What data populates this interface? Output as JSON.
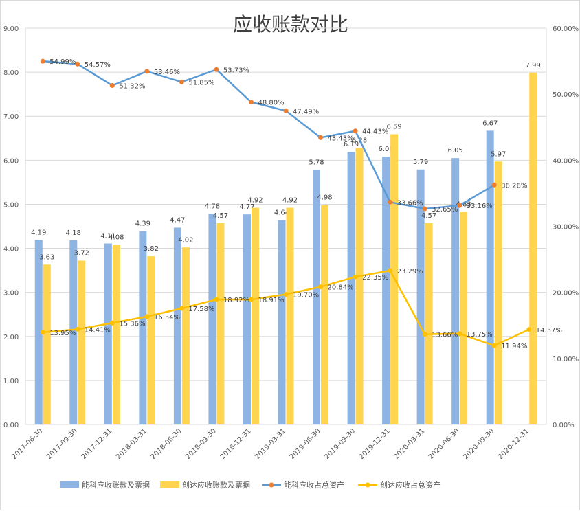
{
  "chart_data": {
    "type": "bar",
    "title": "应收账款对比",
    "categories": [
      "2017-06-30",
      "2017-09-30",
      "2017-12-31",
      "2018-03-31",
      "2018-06-30",
      "2018-09-30",
      "2018-12-31",
      "2019-03-31",
      "2019-06-30",
      "2019-09-30",
      "2019-12-31",
      "2020-03-31",
      "2020-06-30",
      "2020-09-30",
      "2020-12-31"
    ],
    "series": [
      {
        "name": "能科应收账款及票据",
        "kind": "bar",
        "axis": "left",
        "color": "#8db4e2",
        "values": [
          4.19,
          4.18,
          4.11,
          4.39,
          4.47,
          4.78,
          4.77,
          4.64,
          5.78,
          6.19,
          6.08,
          5.79,
          6.05,
          6.67,
          null
        ],
        "labels": [
          "4.19",
          "4.18",
          "4.11",
          "4.39",
          "4.47",
          "4.78",
          "4.77",
          "4.64",
          "5.78",
          "6.19",
          "6.08",
          "5.79",
          "6.05",
          "6.67",
          ""
        ]
      },
      {
        "name": "创达应收账款及票据",
        "kind": "bar",
        "axis": "left",
        "color": "#ffd54f",
        "values": [
          3.63,
          3.72,
          4.08,
          3.82,
          4.02,
          4.57,
          4.92,
          4.92,
          4.98,
          6.28,
          6.59,
          4.57,
          4.83,
          5.97,
          7.99
        ],
        "labels": [
          "3.63",
          "3.72",
          "4.08",
          "3.82",
          "4.02",
          "4.57",
          "4.92",
          "4.92",
          "4.98",
          "6.28",
          "6.59",
          "4.57",
          "4.83",
          "5.97",
          "7.99"
        ]
      },
      {
        "name": "能科应收占总资产",
        "kind": "line",
        "axis": "right",
        "color": "#5b9bd5",
        "marker": "#ed7d31",
        "values": [
          54.99,
          54.57,
          51.32,
          53.46,
          51.85,
          53.73,
          48.8,
          47.49,
          43.43,
          44.43,
          33.66,
          32.65,
          33.16,
          36.26,
          null
        ],
        "labels": [
          "54.99%",
          "54.57%",
          "51.32%",
          "53.46%",
          "51.85%",
          "53.73%",
          "48.80%",
          "47.49%",
          "43.43%",
          "44.43%",
          "33.66%",
          "32.65%",
          "33.16%",
          "36.26%",
          ""
        ]
      },
      {
        "name": "创达应收占总资产",
        "kind": "line",
        "axis": "right",
        "color": "#ffc000",
        "marker": "#ffc000",
        "values": [
          13.95,
          14.41,
          15.36,
          16.34,
          17.58,
          18.92,
          18.91,
          19.7,
          20.84,
          22.35,
          23.29,
          13.66,
          13.75,
          11.94,
          14.37
        ],
        "labels": [
          "13.95%",
          "14.41%",
          "15.36%",
          "16.34%",
          "17.58%",
          "18.92%",
          "18.91%",
          "19.70%",
          "20.84%",
          "22.35%",
          "23.29%",
          "13.66%",
          "13.75%",
          "11.94%",
          "14.37%"
        ]
      }
    ],
    "y_left": {
      "min": 0,
      "max": 9,
      "step": 1,
      "ticks": [
        "0.00",
        "1.00",
        "2.00",
        "3.00",
        "4.00",
        "5.00",
        "6.00",
        "7.00",
        "8.00",
        "9.00"
      ]
    },
    "y_right": {
      "min": 0,
      "max": 60,
      "step": 10,
      "ticks": [
        "0.00%",
        "10.00%",
        "20.00%",
        "30.00%",
        "40.00%",
        "50.00%",
        "60.00%"
      ]
    },
    "grid": true,
    "legend_position": "bottom"
  }
}
